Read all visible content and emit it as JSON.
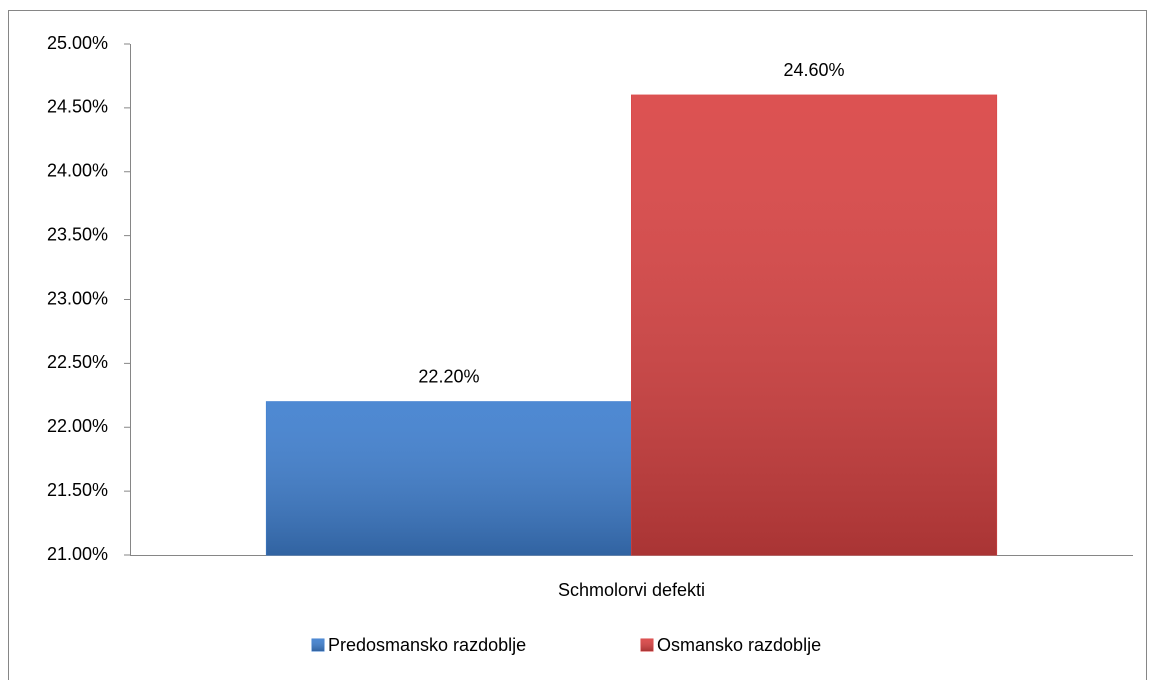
{
  "chart_data": {
    "type": "bar",
    "categories": [
      "Schmolorvi defekti"
    ],
    "series": [
      {
        "name": "Predosmansko razdoblje",
        "color": "#3f7fcf",
        "values": [
          22.2
        ],
        "value_labels": [
          "22.20%"
        ]
      },
      {
        "name": "Osmansko razdoblje",
        "color": "#d94343",
        "values": [
          24.6
        ],
        "value_labels": [
          "24.60%"
        ]
      }
    ],
    "ylim": [
      21,
      25
    ],
    "yticks": [
      {
        "value": 21,
        "label": "21.00%"
      },
      {
        "value": 21.5,
        "label": "21.50%"
      },
      {
        "value": 22,
        "label": "22.00%"
      },
      {
        "value": 22.5,
        "label": "22.50%"
      },
      {
        "value": 23,
        "label": "23.00%"
      },
      {
        "value": 23.5,
        "label": "23.50%"
      },
      {
        "value": 24,
        "label": "24.00%"
      },
      {
        "value": 24.5,
        "label": "24.50%"
      },
      {
        "value": 25,
        "label": "25.00%"
      }
    ],
    "grid": false,
    "legend": "bottom"
  }
}
